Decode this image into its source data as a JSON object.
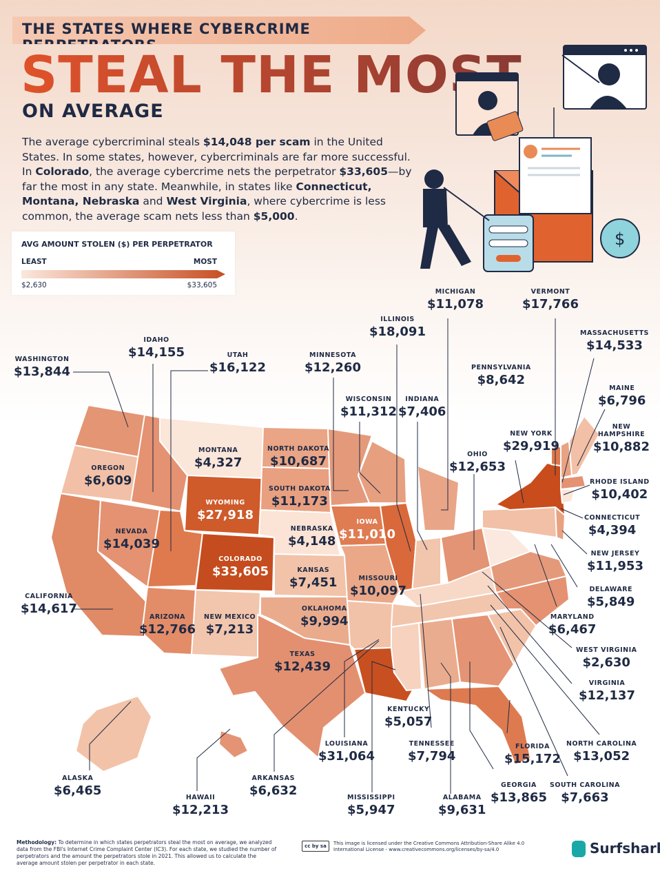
{
  "header": {
    "banner": "THE STATES WHERE CYBERCRIME PERPETRATORS",
    "headline": "STEAL THE MOST",
    "subhead": "ON AVERAGE"
  },
  "intro": {
    "p1": "The average cybercriminal steals ",
    "b1": "$14,048 per scam",
    "p2": " in the United States. In some states, however, cybercriminals are far more successful. In ",
    "b2": "Colorado",
    "p3": ", the average cybercrime nets the perpetrator ",
    "b3": "$33,605",
    "p4": "—by far the most in any state. Meanwhile, in states like ",
    "b4": "Connecticut, Montana, Nebraska",
    "p5": " and ",
    "b5": "West Virginia",
    "p6": ", where cybercrime is less common, the average scam nets less than ",
    "b6": "$5,000",
    "p7": "."
  },
  "legend": {
    "title": "AVG AMOUNT STOLEN ($) PER PERPETRATOR",
    "least_label": "LEAST",
    "most_label": "MOST",
    "min_value": "$2,630",
    "max_value": "$33,605",
    "color_low": "#fbe7dc",
    "color_high": "#c74e22"
  },
  "states": [
    {
      "name": "WASHINGTON",
      "value": "$13,844"
    },
    {
      "name": "IDAHO",
      "value": "$14,155"
    },
    {
      "name": "UTAH",
      "value": "$16,122"
    },
    {
      "name": "MINNESOTA",
      "value": "$12,260"
    },
    {
      "name": "ILLINOIS",
      "value": "$18,091"
    },
    {
      "name": "MICHIGAN",
      "value": "$11,078"
    },
    {
      "name": "VERMONT",
      "value": "$17,766"
    },
    {
      "name": "MASSACHUSETTS",
      "value": "$14,533"
    },
    {
      "name": "PENNSYLVANIA",
      "value": "$8,642"
    },
    {
      "name": "WISCONSIN",
      "value": "$11,312"
    },
    {
      "name": "INDIANA",
      "value": "$7,406"
    },
    {
      "name": "MAINE",
      "value": "$6,796"
    },
    {
      "name": "NEW HAMPSHIRE",
      "value": "$10,882"
    },
    {
      "name": "NEW YORK",
      "value": "$29,919"
    },
    {
      "name": "MONTANA",
      "value": "$4,327"
    },
    {
      "name": "NORTH DAKOTA",
      "value": "$10,687"
    },
    {
      "name": "OREGON",
      "value": "$6,609"
    },
    {
      "name": "OHIO",
      "value": "$12,653"
    },
    {
      "name": "RHODE ISLAND",
      "value": "$10,402"
    },
    {
      "name": "WYOMING",
      "value": "$27,918"
    },
    {
      "name": "SOUTH DAKOTA",
      "value": "$11,173"
    },
    {
      "name": "CONNECTICUT",
      "value": "$4,394"
    },
    {
      "name": "IOWA",
      "value": "$11,010"
    },
    {
      "name": "NEBRASKA",
      "value": "$4,148"
    },
    {
      "name": "NEVADA",
      "value": "$14,039"
    },
    {
      "name": "NEW JERSEY",
      "value": "$11,953"
    },
    {
      "name": "COLORADO",
      "value": "$33,605"
    },
    {
      "name": "KANSAS",
      "value": "$7,451"
    },
    {
      "name": "DELAWARE",
      "value": "$5,849"
    },
    {
      "name": "MISSOURI",
      "value": "$10,097"
    },
    {
      "name": "CALIFORNIA",
      "value": "$14,617"
    },
    {
      "name": "MARYLAND",
      "value": "$6,467"
    },
    {
      "name": "ARIZONA",
      "value": "$12,766"
    },
    {
      "name": "NEW MEXICO",
      "value": "$7,213"
    },
    {
      "name": "OKLAHOMA",
      "value": "$9,994"
    },
    {
      "name": "WEST VIRGINIA",
      "value": "$2,630"
    },
    {
      "name": "TEXAS",
      "value": "$12,439"
    },
    {
      "name": "VIRGINIA",
      "value": "$12,137"
    },
    {
      "name": "KENTUCKY",
      "value": "$5,057"
    },
    {
      "name": "NORTH CAROLINA",
      "value": "$13,052"
    },
    {
      "name": "LOUISIANA",
      "value": "$31,064"
    },
    {
      "name": "TENNESSEE",
      "value": "$7,794"
    },
    {
      "name": "FLORIDA",
      "value": "$15,172"
    },
    {
      "name": "ALASKA",
      "value": "$6,465"
    },
    {
      "name": "GEORGIA",
      "value": "$13,865"
    },
    {
      "name": "SOUTH CAROLINA",
      "value": "$7,663"
    },
    {
      "name": "ARKANSAS",
      "value": "$6,632"
    },
    {
      "name": "HAWAII",
      "value": "$12,213"
    },
    {
      "name": "MISSISSIPPI",
      "value": "$5,947"
    },
    {
      "name": "ALABAMA",
      "value": "$9,631"
    }
  ],
  "footer": {
    "method_title": "Methodology:",
    "method_text": " To determine in which states perpetrators steal the most on average, we analyzed data from the FBI's Internet Crime Complaint Center (IC3). For each state, we studied the number of perpetrators and the amount the perpetrators stole in 2021. This allowed us to calculate the average amount stolen per perpetrator in each state.",
    "license_text": "This image is licensed under the Creative Commons Attribution-Share Alike 4.0 International License - www.creativecommons.org/licenses/by-sa/4.0",
    "brand": "Surfshark",
    "brand_mark": "®"
  }
}
